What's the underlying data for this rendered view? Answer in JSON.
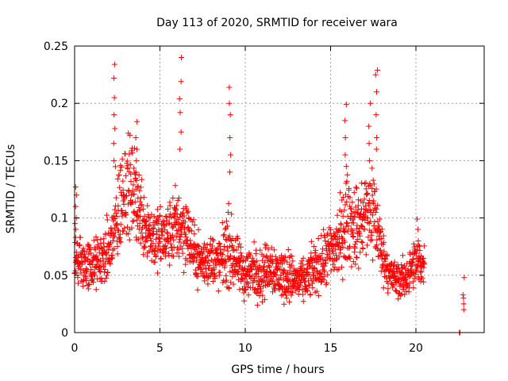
{
  "chart_data": {
    "type": "scatter",
    "title": "Day 113 of 2020, SRMTID for receiver wara",
    "xlabel": "GPS time / hours",
    "ylabel": "SRMTID / TECUs",
    "xlim": [
      0,
      24
    ],
    "ylim": [
      0,
      0.25
    ],
    "xticks": [
      0,
      5,
      10,
      15,
      20
    ],
    "xtick_labels": [
      "0",
      "5",
      "10",
      "15",
      "20"
    ],
    "yticks": [
      0,
      0.05,
      0.1,
      0.15,
      0.2,
      0.25
    ],
    "ytick_labels": [
      "0",
      "0.05",
      "0.1",
      "0.15",
      "0.2",
      "0.25"
    ],
    "grid": true,
    "marker": "+",
    "color": "#ff0000",
    "envelope_note": "approximate per-hour trend of dense scatter, read from gridlines",
    "trend": {
      "x": [
        0.0,
        0.5,
        1.0,
        1.5,
        2.0,
        2.5,
        3.0,
        3.5,
        4.0,
        4.5,
        5.0,
        5.5,
        6.0,
        6.5,
        7.0,
        7.5,
        8.0,
        8.5,
        9.0,
        9.5,
        10.0,
        10.5,
        11.0,
        11.5,
        12.0,
        12.5,
        13.0,
        13.5,
        14.0,
        14.5,
        15.0,
        15.5,
        16.0,
        16.5,
        17.0,
        17.5,
        18.0,
        18.5,
        19.0,
        19.5,
        20.0,
        20.5
      ],
      "y": [
        0.065,
        0.06,
        0.058,
        0.062,
        0.07,
        0.1,
        0.13,
        0.12,
        0.1,
        0.085,
        0.08,
        0.085,
        0.095,
        0.09,
        0.07,
        0.06,
        0.065,
        0.06,
        0.075,
        0.06,
        0.05,
        0.055,
        0.05,
        0.06,
        0.05,
        0.05,
        0.045,
        0.045,
        0.055,
        0.06,
        0.07,
        0.08,
        0.1,
        0.09,
        0.1,
        0.11,
        0.07,
        0.05,
        0.045,
        0.05,
        0.06,
        0.06
      ],
      "spread": [
        0.02,
        0.02,
        0.02,
        0.02,
        0.025,
        0.04,
        0.04,
        0.035,
        0.03,
        0.025,
        0.025,
        0.025,
        0.03,
        0.03,
        0.02,
        0.02,
        0.02,
        0.02,
        0.03,
        0.02,
        0.02,
        0.02,
        0.02,
        0.02,
        0.02,
        0.02,
        0.015,
        0.015,
        0.02,
        0.02,
        0.025,
        0.03,
        0.035,
        0.03,
        0.035,
        0.04,
        0.02,
        0.015,
        0.015,
        0.015,
        0.02,
        0.015
      ]
    },
    "spikes": [
      {
        "x": 0.1,
        "values": [
          0.1,
          0.11,
          0.12,
          0.127,
          0.09,
          0.083
        ]
      },
      {
        "x": 2.35,
        "values": [
          0.234,
          0.222,
          0.205,
          0.19,
          0.178,
          0.165,
          0.15
        ]
      },
      {
        "x": 3.6,
        "values": [
          0.184,
          0.17,
          0.16,
          0.15,
          0.14
        ]
      },
      {
        "x": 6.2,
        "values": [
          0.24,
          0.219,
          0.204,
          0.192,
          0.175,
          0.16
        ]
      },
      {
        "x": 9.1,
        "values": [
          0.214,
          0.2,
          0.19,
          0.17,
          0.155,
          0.14
        ]
      },
      {
        "x": 15.9,
        "values": [
          0.199,
          0.185,
          0.17,
          0.155,
          0.145
        ]
      },
      {
        "x": 17.3,
        "values": [
          0.2,
          0.18,
          0.165,
          0.15
        ]
      },
      {
        "x": 17.7,
        "values": [
          0.229,
          0.225,
          0.21,
          0.19,
          0.17,
          0.16
        ]
      },
      {
        "x": 20.1,
        "values": [
          0.099,
          0.09,
          0.08
        ]
      },
      {
        "x": 22.6,
        "values": [
          0.0,
          0.0,
          0.0
        ]
      },
      {
        "x": 22.8,
        "values": [
          0.048,
          0.033,
          0.03,
          0.025,
          0.02
        ]
      }
    ]
  }
}
